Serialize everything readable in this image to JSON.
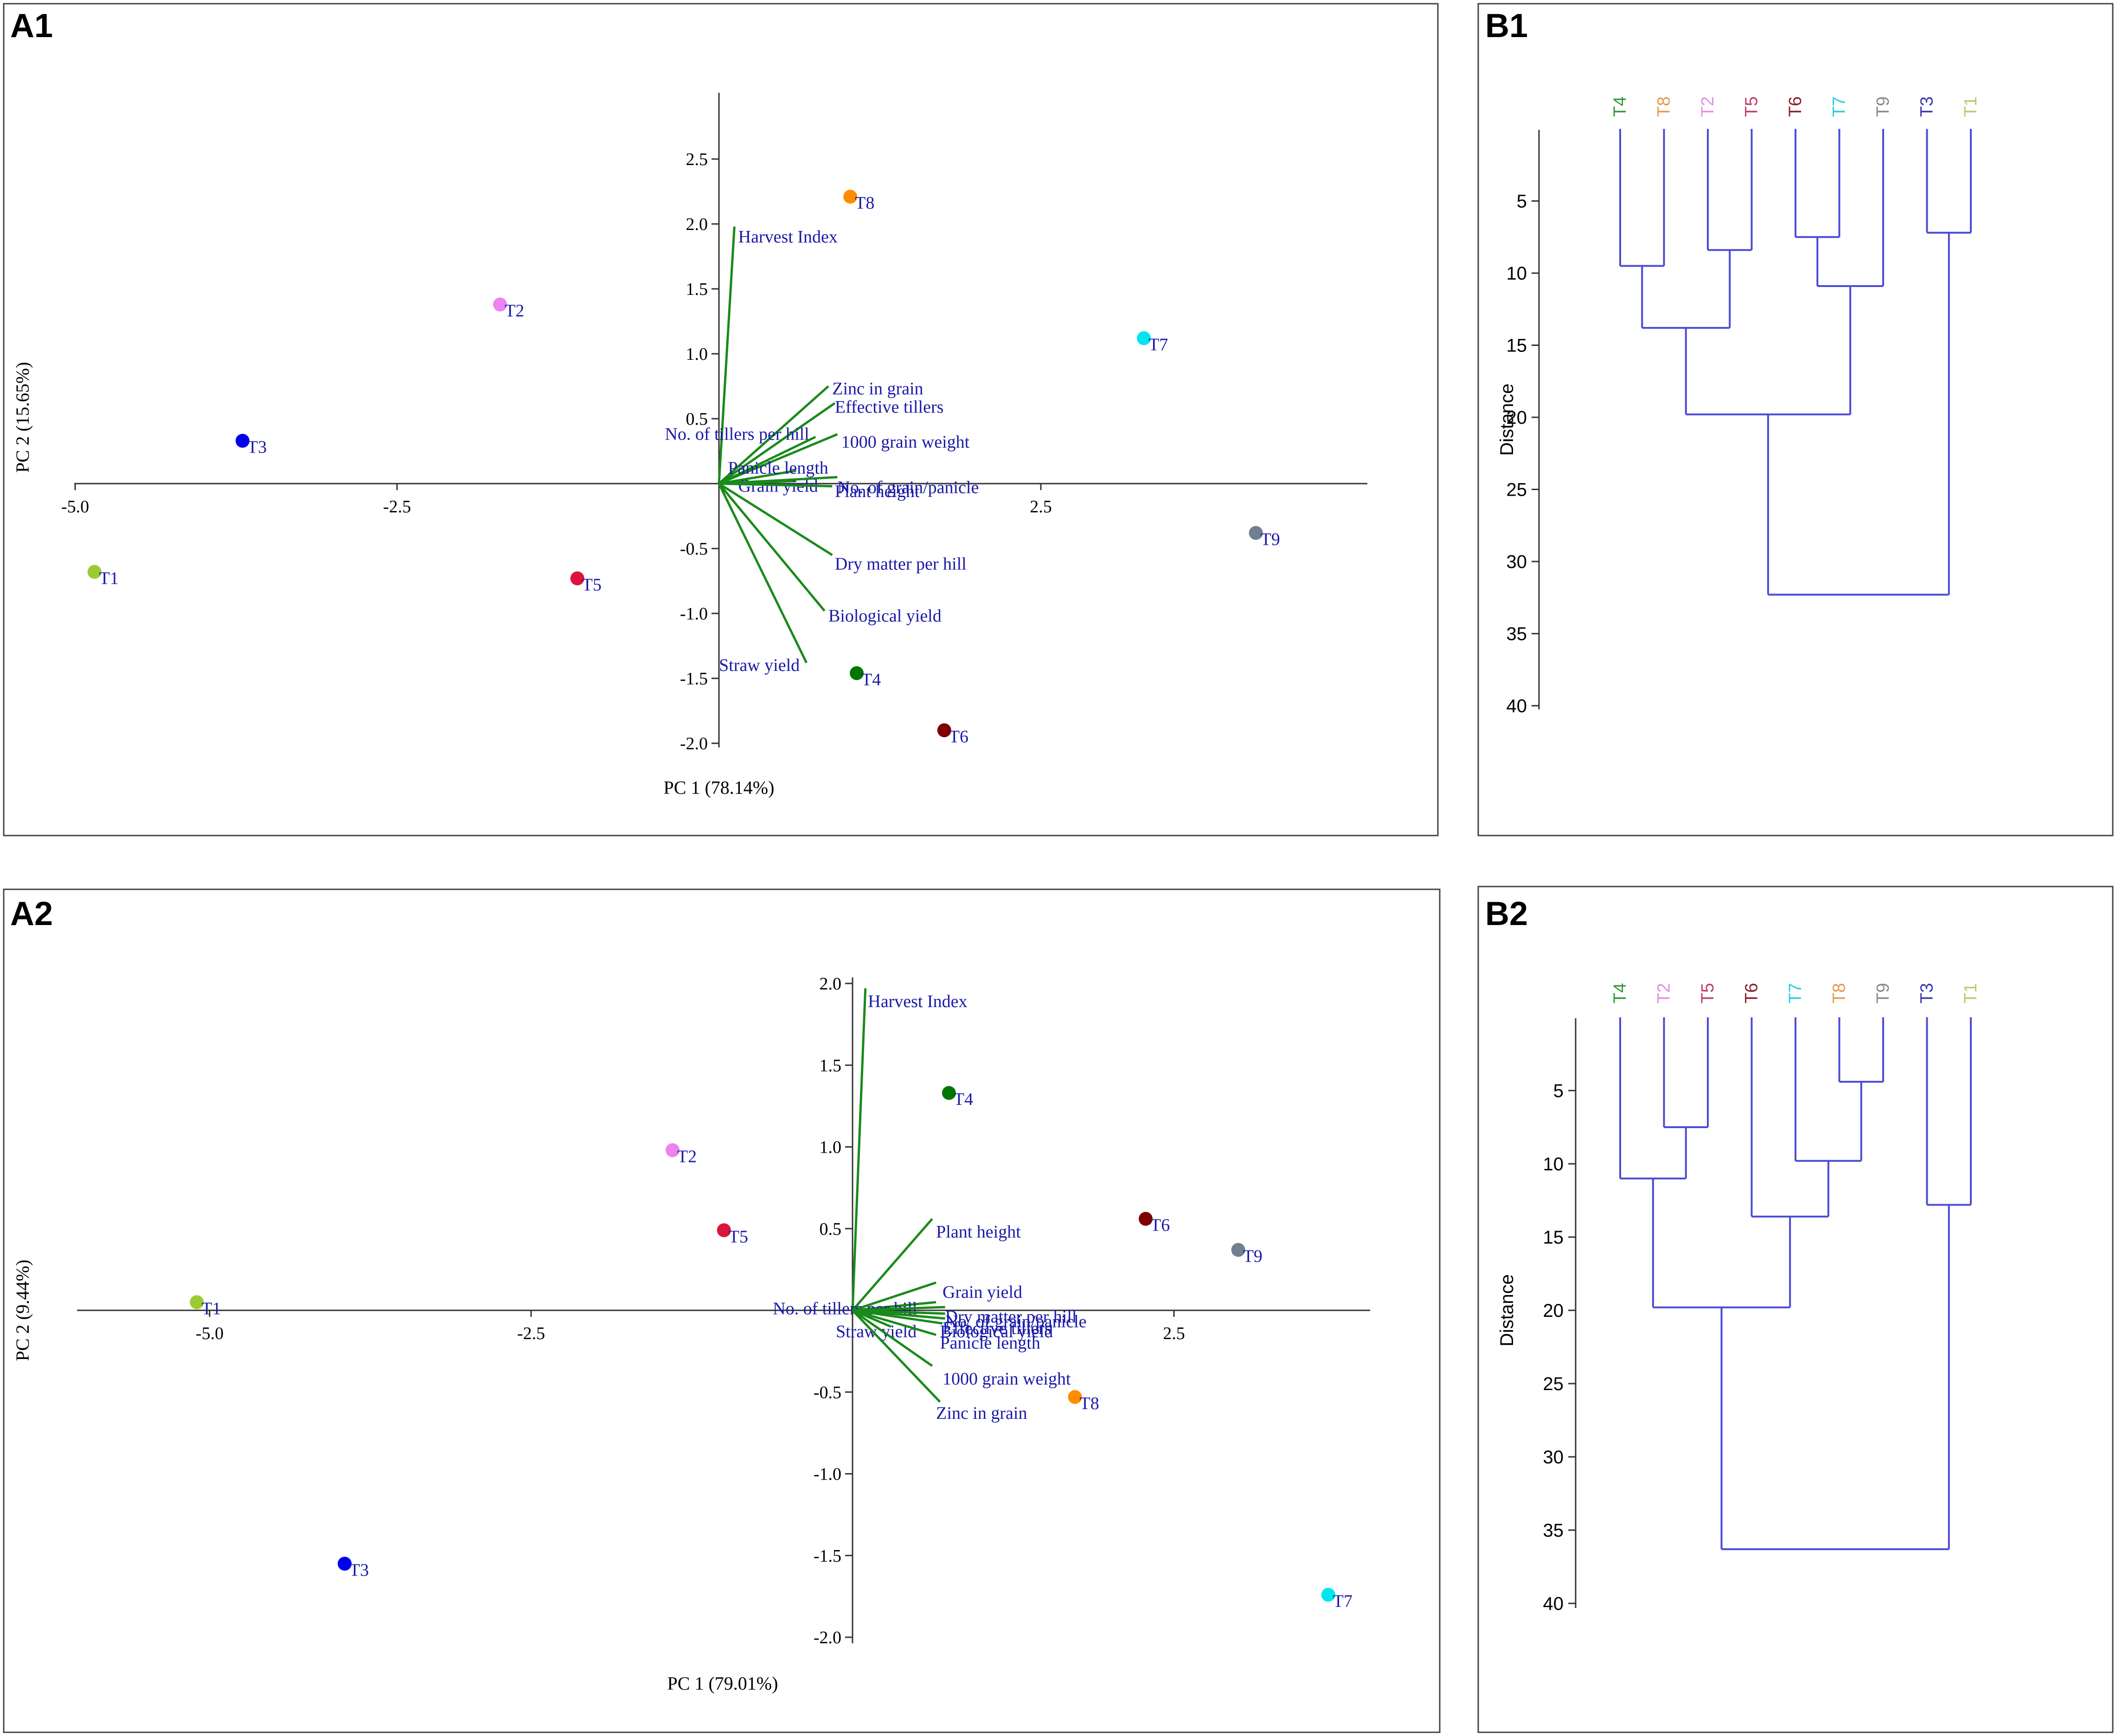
{
  "chart_data": [
    {
      "id": "A1",
      "type": "scatter",
      "subtype": "pca-biplot",
      "panel_label": "A1",
      "xlabel": "PC 1 (78.14%)",
      "ylabel": "PC 2 (15.65%)",
      "xlim": [
        -5.0,
        5.0
      ],
      "ylim": [
        -2.0,
        3.0
      ],
      "xticks": [
        {
          "v": -5.0,
          "label": "-5.0"
        },
        {
          "v": -2.5,
          "label": "-2.5"
        },
        {
          "v": 2.5,
          "label": "2.5"
        }
      ],
      "yticks": [
        {
          "v": 2.5,
          "label": "2.5"
        },
        {
          "v": 2.0,
          "label": "2.0"
        },
        {
          "v": 1.5,
          "label": "1.5"
        },
        {
          "v": 1.0,
          "label": "1.0"
        },
        {
          "v": 0.5,
          "label": "0.5"
        },
        {
          "v": -0.5,
          "label": "-0.5"
        },
        {
          "v": -1.0,
          "label": "-1.0"
        },
        {
          "v": -1.5,
          "label": "-1.5"
        },
        {
          "v": -2.0,
          "label": "-2.0"
        }
      ],
      "points": [
        {
          "name": "T1",
          "x": -4.85,
          "y": -0.68,
          "color": "#99cc33"
        },
        {
          "name": "T2",
          "x": -1.7,
          "y": 1.38,
          "color": "#ee82ee"
        },
        {
          "name": "T3",
          "x": -3.7,
          "y": 0.33,
          "color": "#0000ee"
        },
        {
          "name": "T4",
          "x": 1.07,
          "y": -1.46,
          "color": "#007700"
        },
        {
          "name": "T5",
          "x": -1.1,
          "y": -0.73,
          "color": "#dc143c"
        },
        {
          "name": "T6",
          "x": 1.75,
          "y": -1.9,
          "color": "#800000"
        },
        {
          "name": "T7",
          "x": 3.3,
          "y": 1.12,
          "color": "#00e5ee"
        },
        {
          "name": "T8",
          "x": 1.02,
          "y": 2.21,
          "color": "#ff8c00"
        },
        {
          "name": "T9",
          "x": 4.17,
          "y": -0.38,
          "color": "#708090"
        }
      ],
      "vectors": [
        {
          "name": "Harvest Index",
          "x": 0.12,
          "y": 1.98,
          "lx": 0.15,
          "ly": 1.9
        },
        {
          "name": "Zinc in grain",
          "x": 0.85,
          "y": 0.75,
          "lx": 0.88,
          "ly": 0.73
        },
        {
          "name": "Effective tillers",
          "x": 0.9,
          "y": 0.62,
          "lx": 0.9,
          "ly": 0.59
        },
        {
          "name": "No. of tillers per hill",
          "x": 0.75,
          "y": 0.36,
          "lx": -0.42,
          "ly": 0.38
        },
        {
          "name": "1000 grain weight",
          "x": 0.92,
          "y": 0.38,
          "lx": 0.95,
          "ly": 0.32
        },
        {
          "name": "Panicle length",
          "x": 0.6,
          "y": 0.1,
          "lx": 0.07,
          "ly": 0.12
        },
        {
          "name": "Grain yield",
          "x": 0.6,
          "y": 0.02,
          "lx": 0.15,
          "ly": -0.02
        },
        {
          "name": "No. of grain/panicle",
          "x": 0.92,
          "y": 0.05,
          "lx": 0.92,
          "ly": -0.03
        },
        {
          "name": "Plant height",
          "x": 0.88,
          "y": -0.02,
          "lx": 0.9,
          "ly": -0.06
        },
        {
          "name": "Dry matter per hill",
          "x": 0.88,
          "y": -0.55,
          "lx": 0.9,
          "ly": -0.62
        },
        {
          "name": "Biological yield",
          "x": 0.82,
          "y": -0.98,
          "lx": 0.85,
          "ly": -1.02
        },
        {
          "name": "Straw yield",
          "x": 0.68,
          "y": -1.38,
          "lx": 0.0,
          "ly": -1.4
        }
      ]
    },
    {
      "id": "A2",
      "type": "scatter",
      "subtype": "pca-biplot",
      "panel_label": "A2",
      "xlabel": "PC 1 (79.01%)",
      "ylabel": "PC 2 (9.44%)",
      "xlim": [
        -6.0,
        4.0
      ],
      "ylim": [
        -2.0,
        2.0
      ],
      "xticks": [
        {
          "v": -5.0,
          "label": "-5.0"
        },
        {
          "v": -2.5,
          "label": "-2.5"
        },
        {
          "v": 2.5,
          "label": "2.5"
        }
      ],
      "yticks": [
        {
          "v": 2.0,
          "label": "2.0"
        },
        {
          "v": 1.5,
          "label": "1.5"
        },
        {
          "v": 1.0,
          "label": "1.0"
        },
        {
          "v": 0.5,
          "label": "0.5"
        },
        {
          "v": -0.5,
          "label": "-0.5"
        },
        {
          "v": -1.0,
          "label": "-1.0"
        },
        {
          "v": -1.5,
          "label": "-1.5"
        },
        {
          "v": -2.0,
          "label": "-2.0"
        }
      ],
      "points": [
        {
          "name": "T1",
          "x": -5.1,
          "y": 0.05,
          "color": "#99cc33"
        },
        {
          "name": "T2",
          "x": -1.4,
          "y": 0.98,
          "color": "#ee82ee"
        },
        {
          "name": "T3",
          "x": -3.95,
          "y": -1.55,
          "color": "#0000ee"
        },
        {
          "name": "T4",
          "x": 0.75,
          "y": 1.33,
          "color": "#007700"
        },
        {
          "name": "T5",
          "x": -1.0,
          "y": 0.49,
          "color": "#dc143c"
        },
        {
          "name": "T6",
          "x": 2.28,
          "y": 0.56,
          "color": "#800000"
        },
        {
          "name": "T7",
          "x": 3.7,
          "y": -1.74,
          "color": "#00e5ee"
        },
        {
          "name": "T8",
          "x": 1.73,
          "y": -0.53,
          "color": "#ff8c00"
        },
        {
          "name": "T9",
          "x": 3.0,
          "y": 0.37,
          "color": "#708090"
        }
      ],
      "vectors": [
        {
          "name": "Harvest Index",
          "x": 0.1,
          "y": 1.97,
          "lx": 0.12,
          "ly": 1.89
        },
        {
          "name": "Plant height",
          "x": 0.62,
          "y": 0.56,
          "lx": 0.65,
          "ly": 0.48
        },
        {
          "name": "Grain yield",
          "x": 0.65,
          "y": 0.17,
          "lx": 0.7,
          "ly": 0.11
        },
        {
          "name": "No. of tillers per hill",
          "x": 0.65,
          "y": 0.05,
          "lx": -0.62,
          "ly": 0.01
        },
        {
          "name": "Dry matter per hill",
          "x": 0.72,
          "y": 0.02,
          "lx": 0.72,
          "ly": -0.04
        },
        {
          "name": "No. of grain/panicle",
          "x": 0.72,
          "y": -0.02,
          "lx": 0.72,
          "ly": -0.07
        },
        {
          "name": "Effective tillers",
          "x": 0.72,
          "y": -0.05,
          "lx": 0.7,
          "ly": -0.11
        },
        {
          "name": "Biological yield",
          "x": 0.7,
          "y": -0.08,
          "lx": 0.68,
          "ly": -0.13
        },
        {
          "name": "Straw yield",
          "x": 0.3,
          "y": -0.1,
          "lx": -0.13,
          "ly": -0.13
        },
        {
          "name": "Panicle length",
          "x": 0.65,
          "y": -0.15,
          "lx": 0.68,
          "ly": -0.2
        },
        {
          "name": "1000 grain weight",
          "x": 0.62,
          "y": -0.34,
          "lx": 0.7,
          "ly": -0.42
        },
        {
          "name": "Zinc in grain",
          "x": 0.68,
          "y": -0.56,
          "lx": 0.65,
          "ly": -0.63
        }
      ]
    },
    {
      "id": "B1",
      "type": "dendrogram",
      "panel_label": "B1",
      "ylabel": "Distance",
      "ylim": [
        0,
        40
      ],
      "yticks": [
        5,
        10,
        15,
        20,
        25,
        30,
        35,
        40
      ],
      "leaves": [
        {
          "name": "T4",
          "color": "#339933"
        },
        {
          "name": "T8",
          "color": "#e69a4c"
        },
        {
          "name": "T2",
          "color": "#e48ee4"
        },
        {
          "name": "T5",
          "color": "#c43c64"
        },
        {
          "name": "T6",
          "color": "#8a1f2a"
        },
        {
          "name": "T7",
          "color": "#26d0e0"
        },
        {
          "name": "T9",
          "color": "#8a8a8a"
        },
        {
          "name": "T3",
          "color": "#3a3ab0"
        },
        {
          "name": "T1",
          "color": "#b5cc6a"
        }
      ],
      "merges": [
        {
          "a": 5,
          "b": 6,
          "h": 7.5
        },
        {
          "a": 8,
          "b": 9,
          "h": 7.2
        },
        {
          "a": 3,
          "b": 4,
          "h": 8.4
        },
        {
          "a": 1,
          "b": 2,
          "h": 9.5
        },
        {
          "a": 10,
          "b": 7,
          "h": 10.9
        },
        {
          "a": 13,
          "b": 12,
          "h": 13.8
        },
        {
          "a": 15,
          "b": 14,
          "h": 19.8
        },
        {
          "a": 16,
          "b": 11,
          "h": 32.3
        }
      ]
    },
    {
      "id": "B2",
      "type": "dendrogram",
      "panel_label": "B2",
      "ylabel": "Distance",
      "ylim": [
        0,
        40
      ],
      "yticks": [
        5,
        10,
        15,
        20,
        25,
        30,
        35,
        40
      ],
      "leaves": [
        {
          "name": "T4",
          "color": "#339933"
        },
        {
          "name": "T2",
          "color": "#e48ee4"
        },
        {
          "name": "T5",
          "color": "#c43c64"
        },
        {
          "name": "T6",
          "color": "#8a1f2a"
        },
        {
          "name": "T7",
          "color": "#26d0e0"
        },
        {
          "name": "T8",
          "color": "#e69a4c"
        },
        {
          "name": "T9",
          "color": "#8a8a8a"
        },
        {
          "name": "T3",
          "color": "#3a3ab0"
        },
        {
          "name": "T1",
          "color": "#b5cc6a"
        }
      ],
      "merges": [
        {
          "a": 6,
          "b": 7,
          "h": 4.4
        },
        {
          "a": 2,
          "b": 3,
          "h": 7.5
        },
        {
          "a": 5,
          "b": 10,
          "h": 9.8
        },
        {
          "a": 1,
          "b": 11,
          "h": 11.0
        },
        {
          "a": 8,
          "b": 9,
          "h": 12.8
        },
        {
          "a": 4,
          "b": 12,
          "h": 13.6
        },
        {
          "a": 13,
          "b": 15,
          "h": 19.8
        },
        {
          "a": 16,
          "b": 14,
          "h": 36.3
        }
      ]
    }
  ]
}
